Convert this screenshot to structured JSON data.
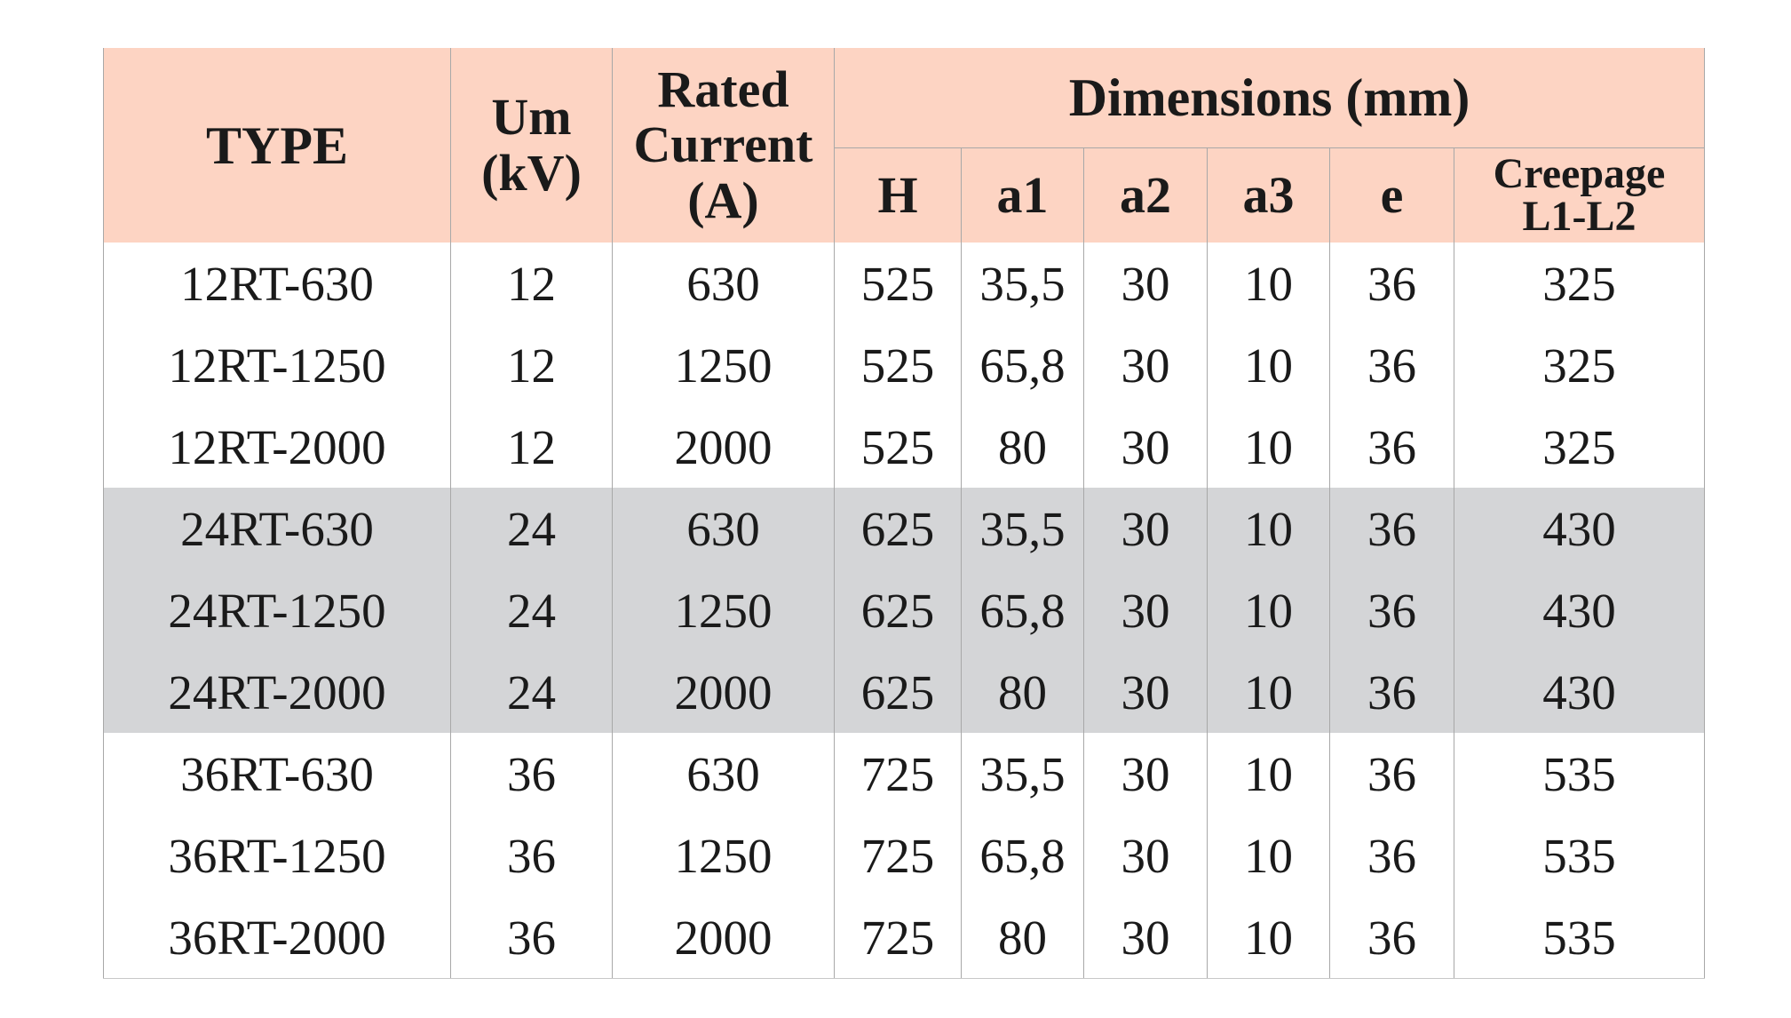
{
  "header": {
    "type": "TYPE",
    "um": "Um",
    "um_unit": "(kV)",
    "rated_1": "Rated",
    "rated_2": "Current",
    "rated_3": "(A)",
    "dimensions": "Dimensions (mm)",
    "h": "H",
    "a1": "a1",
    "a2": "a2",
    "a3": "a3",
    "e": "e",
    "creepage_1": "Creepage",
    "creepage_2": "L1-L2"
  },
  "colors": {
    "header_bg": "#fdd4c3",
    "gray_group_bg": "#d4d5d7"
  },
  "rows": [
    {
      "type": "12RT-630",
      "um": "12",
      "current": "630",
      "h": "525",
      "a1": "35,5",
      "a2": "30",
      "a3": "10",
      "e": "36",
      "creepage": "325"
    },
    {
      "type": "12RT-1250",
      "um": "12",
      "current": "1250",
      "h": "525",
      "a1": "65,8",
      "a2": "30",
      "a3": "10",
      "e": "36",
      "creepage": "325"
    },
    {
      "type": "12RT-2000",
      "um": "12",
      "current": "2000",
      "h": "525",
      "a1": "80",
      "a2": "30",
      "a3": "10",
      "e": "36",
      "creepage": "325"
    },
    {
      "type": "24RT-630",
      "um": "24",
      "current": "630",
      "h": "625",
      "a1": "35,5",
      "a2": "30",
      "a3": "10",
      "e": "36",
      "creepage": "430"
    },
    {
      "type": "24RT-1250",
      "um": "24",
      "current": "1250",
      "h": "625",
      "a1": "65,8",
      "a2": "30",
      "a3": "10",
      "e": "36",
      "creepage": "430"
    },
    {
      "type": "24RT-2000",
      "um": "24",
      "current": "2000",
      "h": "625",
      "a1": "80",
      "a2": "30",
      "a3": "10",
      "e": "36",
      "creepage": "430"
    },
    {
      "type": "36RT-630",
      "um": "36",
      "current": "630",
      "h": "725",
      "a1": "35,5",
      "a2": "30",
      "a3": "10",
      "e": "36",
      "creepage": "535"
    },
    {
      "type": "36RT-1250",
      "um": "36",
      "current": "1250",
      "h": "725",
      "a1": "65,8",
      "a2": "30",
      "a3": "10",
      "e": "36",
      "creepage": "535"
    },
    {
      "type": "36RT-2000",
      "um": "36",
      "current": "2000",
      "h": "725",
      "a1": "80",
      "a2": "30",
      "a3": "10",
      "e": "36",
      "creepage": "535"
    }
  ]
}
